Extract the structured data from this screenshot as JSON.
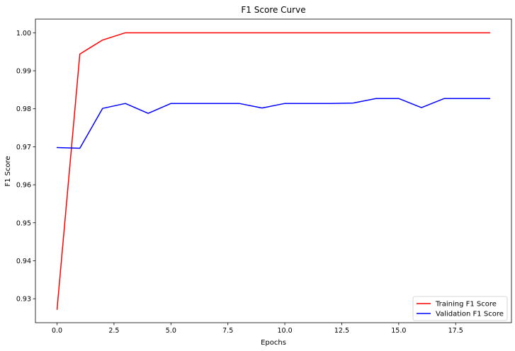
{
  "chart_data": {
    "type": "line",
    "title": "F1 Score Curve",
    "xlabel": "Epochs",
    "ylabel": "F1 Score",
    "xlim": [
      -0.95,
      19.95
    ],
    "ylim": [
      0.9237,
      1.0036
    ],
    "x_ticks": [
      0.0,
      2.5,
      5.0,
      7.5,
      10.0,
      12.5,
      15.0,
      17.5
    ],
    "x_tick_labels": [
      "0.0",
      "2.5",
      "5.0",
      "7.5",
      "10.0",
      "12.5",
      "15.0",
      "17.5"
    ],
    "y_ticks": [
      0.93,
      0.94,
      0.95,
      0.96,
      0.97,
      0.98,
      0.99,
      1.0
    ],
    "y_tick_labels": [
      "0.93",
      "0.94",
      "0.95",
      "0.96",
      "0.97",
      "0.98",
      "0.99",
      "1.00"
    ],
    "grid": false,
    "legend_position": "lower-right",
    "x": [
      0,
      1,
      2,
      3,
      4,
      5,
      6,
      7,
      8,
      9,
      10,
      11,
      12,
      13,
      14,
      15,
      16,
      17,
      18,
      19
    ],
    "series": [
      {
        "name": "Training F1 Score",
        "color": "#ff0000",
        "values": [
          0.9272,
          0.9944,
          0.9981,
          1.0,
          1.0,
          1.0,
          1.0,
          1.0,
          1.0,
          1.0,
          1.0,
          1.0,
          1.0,
          1.0,
          1.0,
          1.0,
          1.0,
          1.0,
          1.0,
          1.0
        ]
      },
      {
        "name": "Validation F1 Score",
        "color": "#0000ff",
        "values": [
          0.9698,
          0.9696,
          0.9801,
          0.9814,
          0.9788,
          0.9814,
          0.9814,
          0.9814,
          0.9814,
          0.9802,
          0.9814,
          0.9814,
          0.9814,
          0.9815,
          0.9827,
          0.9827,
          0.9803,
          0.9827,
          0.9827,
          0.9827
        ]
      }
    ]
  }
}
